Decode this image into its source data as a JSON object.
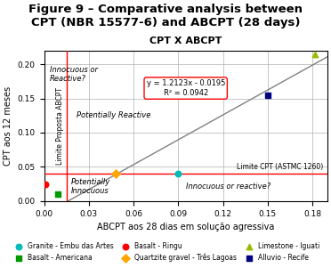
{
  "chart_data": {
    "type": "scatter",
    "title": "Figure 9 – Comparative analysis between\nCPT (NBR 15577-6) and ABCPT (28 days)",
    "subtitle": "CPT X ABCPT",
    "x_label": "ABCPT aos 28 dias em solução agressiva",
    "y_label": "CPT aos 12 meses",
    "xlim": [
      0.0,
      0.19
    ],
    "ylim": [
      0.0,
      0.22
    ],
    "xticks": [
      {
        "value": 0.0,
        "label": "0.00"
      },
      0.03,
      0.06,
      0.09,
      0.12,
      0.15,
      0.18
    ],
    "yticks": [
      {
        "value": 0.0,
        "label": "0.00"
      },
      0.05,
      {
        "value": 0.1,
        "label": "0.10"
      },
      0.15,
      {
        "value": 0.2,
        "label": "0.20"
      }
    ],
    "grid": true,
    "legend": "lower center",
    "series": [
      {
        "name": "Granite - Embu das Artes",
        "color": "#00BBBB",
        "marker": "circle",
        "x": [
          0.09
        ],
        "y": [
          0.04
        ]
      },
      {
        "name": "Basalt - Americana",
        "color": "#009900",
        "marker": "square",
        "x": [
          0.009
        ],
        "y": [
          0.01
        ]
      },
      {
        "name": "Basalt - Ringu",
        "color": "#FF0000",
        "marker": "circle",
        "x": [
          0.001
        ],
        "y": [
          0.025
        ]
      },
      {
        "name": "Quartzite gravel - Três Lagoas",
        "color": "#FFA500",
        "marker": "diamond",
        "x": [
          0.048
        ],
        "y": [
          0.04
        ]
      },
      {
        "name": "Limestone - Iguati",
        "color": "#99BB00",
        "marker": "triangle",
        "x": [
          0.182
        ],
        "y": [
          0.215
        ]
      },
      {
        "name": "Alluvio - Recife",
        "color": "#000080",
        "marker": "square",
        "x": [
          0.15
        ],
        "y": [
          0.155
        ]
      }
    ],
    "reference_lines": [
      {
        "axis": "y",
        "value": 0.04,
        "label": "Limite CPT (ASTMC 1260)",
        "color": "#FF0000"
      },
      {
        "axis": "x",
        "value": 0.015,
        "label": "Limite Proposta ABCPT",
        "color": "#FF0000"
      }
    ],
    "regression": {
      "slope": 1.2123,
      "intercept": -0.0195,
      "label": "y = 1.2123x - 0.0195\nR² = 0.0942"
    },
    "annotations": [
      {
        "text": "Innocuous or\nReactive?",
        "x": 0.004,
        "y": 0.185
      },
      {
        "text": "Potentially Reactive",
        "x": 0.022,
        "y": 0.125
      },
      {
        "text": "Potentially\nInnocuous",
        "x": 0.018,
        "y": 0.021
      },
      {
        "text": "Innocuous or reactive?",
        "x": 0.095,
        "y": 0.021
      }
    ]
  }
}
